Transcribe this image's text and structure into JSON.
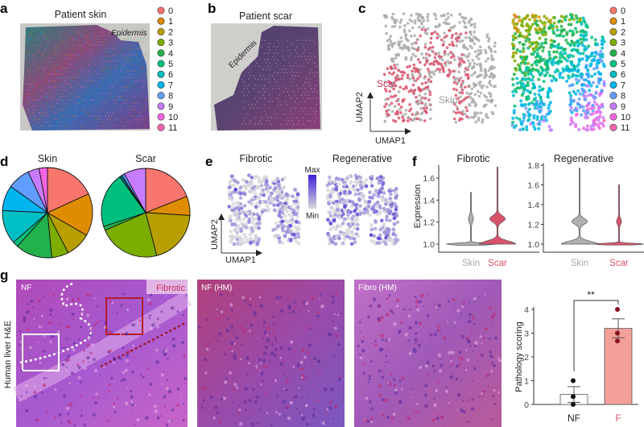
{
  "panels": {
    "a": {
      "label": "a",
      "title": "Patient skin",
      "annotation": "Epidermis"
    },
    "b": {
      "label": "b",
      "title": "Patient scar",
      "annotation": "Epidermis"
    },
    "c": {
      "label": "c",
      "xlabel": "UMAP1",
      "ylabel": "UMAP2",
      "group_scar": "Scar",
      "group_skin": "Skin"
    },
    "d": {
      "label": "d"
    },
    "e": {
      "label": "e",
      "title_left": "Fibrotic",
      "title_right": "Regenerative",
      "colorbar_max": "Max",
      "colorbar_min": "Min",
      "xlabel": "UMAP1",
      "ylabel": "UMAP2"
    },
    "f": {
      "label": "f"
    },
    "g": {
      "label": "g",
      "row_label": "Human liver H&E",
      "image_labels": [
        "NF",
        "NF (HM)",
        "Fibro (HM)"
      ],
      "fibrotic_tag": "Fibrotic"
    }
  },
  "cluster_legend": {
    "labels": [
      "0",
      "1",
      "2",
      "3",
      "4",
      "5",
      "6",
      "7",
      "8",
      "9",
      "10",
      "11"
    ],
    "colors": [
      "#f8766d",
      "#de8c00",
      "#b79f00",
      "#7cae00",
      "#22b14c",
      "#00bf7d",
      "#00bfc4",
      "#00b4f0",
      "#619cff",
      "#c77cff",
      "#f564e3",
      "#ff64b0"
    ]
  },
  "colors": {
    "skin": "#b0b0b0",
    "scar": "#d9536b",
    "fibrotic_label": "#c8325a",
    "max": "#3a1fd6",
    "min": "#d8d8dc",
    "bar_nf": "#ffffff",
    "bar_f": "#f4a09a"
  },
  "chart_data": [
    {
      "type": "pie",
      "title": "Skin",
      "categories": [
        "0",
        "1",
        "2",
        "3",
        "4",
        "5",
        "6",
        "7",
        "8",
        "9",
        "10"
      ],
      "values": [
        18,
        15,
        9,
        6,
        13,
        2,
        12,
        9,
        8,
        4,
        3
      ]
    },
    {
      "type": "pie",
      "title": "Scar",
      "categories": [
        "0",
        "1",
        "2",
        "3",
        "4",
        "5",
        "6",
        "7",
        "8",
        "9"
      ],
      "values": [
        19,
        7,
        20,
        22.5,
        1.5,
        20,
        0.5,
        0.5,
        1,
        8
      ]
    },
    {
      "type": "violin",
      "title": "Fibrotic",
      "ylabel": "Expression",
      "categories": [
        "Skin",
        "Scar"
      ],
      "ylim": [
        0.95,
        1.72
      ],
      "yticks": [
        "1.0",
        "1.2",
        "1.4",
        "1.6"
      ],
      "series": [
        {
          "category": "Skin",
          "min": 0.99,
          "max": 1.47,
          "modes": [
            1.0,
            1.23
          ]
        },
        {
          "category": "Scar",
          "min": 1.0,
          "max": 1.7,
          "modes": [
            1.0,
            1.23
          ]
        }
      ]
    },
    {
      "type": "violin",
      "title": "Regenerative",
      "categories": [
        "Skin",
        "Scar"
      ],
      "ylim": [
        0.95,
        1.82
      ],
      "yticks": [
        "1.0",
        "1.2",
        "1.4",
        "1.6",
        "1.8"
      ],
      "series": [
        {
          "category": "Skin",
          "min": 1.0,
          "max": 1.77,
          "modes": [
            1.0,
            1.23
          ]
        },
        {
          "category": "Scar",
          "min": 0.99,
          "max": 1.6,
          "modes": [
            1.0,
            1.23
          ]
        }
      ]
    },
    {
      "type": "bar",
      "ylabel": "Pathology scoring",
      "categories": [
        "NF",
        "F"
      ],
      "values": [
        0.42,
        3.2
      ],
      "sem": [
        0.33,
        0.4
      ],
      "points": [
        [
          0,
          0.33,
          1
        ],
        [
          2.67,
          3,
          4
        ]
      ],
      "ylim": [
        0,
        4
      ],
      "yticks": [
        "0",
        "1",
        "2",
        "3",
        "4"
      ],
      "significance": "**"
    }
  ]
}
